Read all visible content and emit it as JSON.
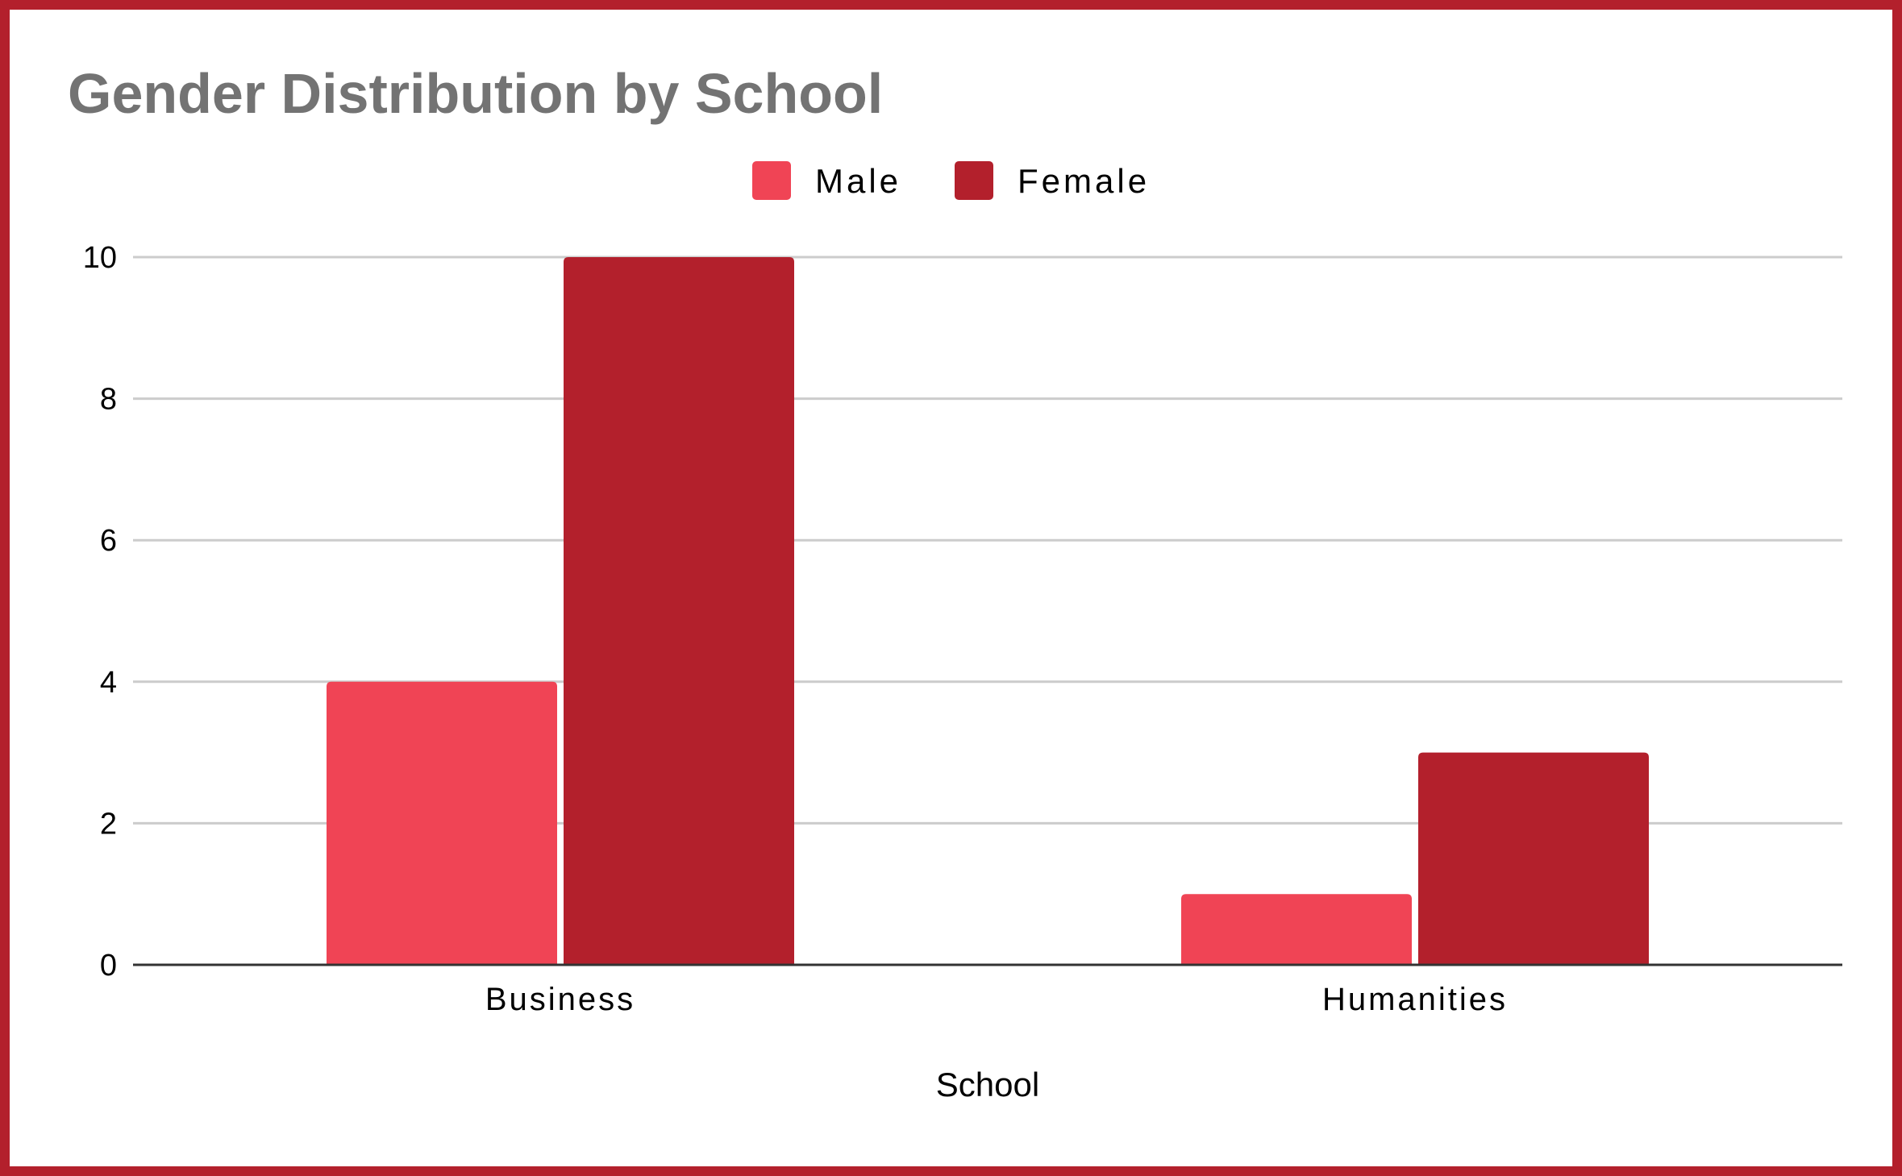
{
  "chart_data": {
    "type": "bar",
    "title": "Gender Distribution by School",
    "xlabel": "School",
    "ylabel": "",
    "categories": [
      "Business",
      "Humanities"
    ],
    "series": [
      {
        "name": "Male",
        "values": [
          4,
          1
        ],
        "color": "#f04455"
      },
      {
        "name": "Female",
        "values": [
          10,
          3
        ],
        "color": "#b3202c"
      }
    ],
    "ylim": [
      0,
      10
    ],
    "yticks": [
      0,
      2,
      4,
      6,
      8,
      10
    ],
    "grid": true,
    "legend_position": "top-center"
  }
}
